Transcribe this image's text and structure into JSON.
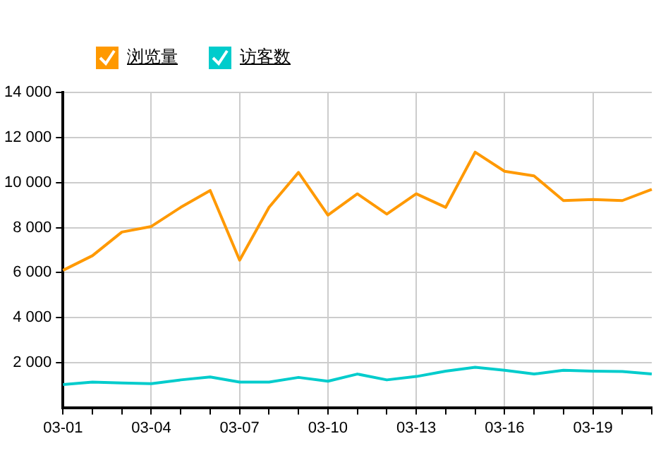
{
  "chart_data": {
    "type": "line",
    "categories": [
      "03-01",
      null,
      null,
      "03-04",
      null,
      null,
      "03-07",
      null,
      null,
      "03-10",
      null,
      null,
      "03-13",
      null,
      null,
      "03-16",
      null,
      null,
      "03-19",
      null,
      null
    ],
    "series": [
      {
        "name": "浏览量",
        "color": "#ff9900",
        "values": [
          6100,
          6750,
          7800,
          8050,
          8900,
          9650,
          6550,
          8900,
          10450,
          8550,
          9500,
          8600,
          9500,
          8900,
          11350,
          10500,
          10300,
          9200,
          9250,
          9200,
          9700
        ]
      },
      {
        "name": "访客数",
        "color": "#00cccc",
        "values": [
          1020,
          1130,
          1090,
          1060,
          1230,
          1360,
          1130,
          1130,
          1340,
          1170,
          1490,
          1230,
          1380,
          1620,
          1790,
          1660,
          1490,
          1660,
          1620,
          1600,
          1490
        ]
      }
    ],
    "ylim": [
      0,
      14000
    ],
    "yticks": [
      2000,
      4000,
      6000,
      8000,
      10000,
      12000,
      14000
    ],
    "grid": true,
    "legend": "top left",
    "marker": "none",
    "line_style": "solid"
  }
}
